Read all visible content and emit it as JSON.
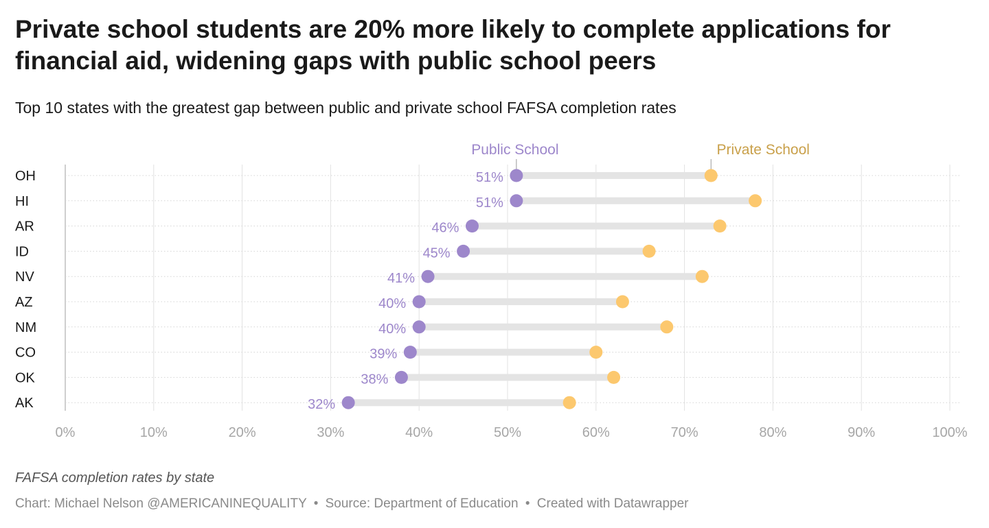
{
  "header": {
    "title": "Private school students are 20% more likely to complete applications for financial aid, widening gaps with public school peers",
    "subtitle": "Top 10 states with the greatest gap between public and private school FAFSA completion rates"
  },
  "footer": {
    "notes": "FAFSA completion rates by state",
    "credit": "Chart: Michael Nelson @AMERICANINEQUALITY",
    "source": "Source: Department of Education",
    "tool": "Created with Datawrapper",
    "separator": "•"
  },
  "colors": {
    "public": "#9d87cb",
    "private": "#fcc86e",
    "private_label": "#c9a04a",
    "connector": "#e4e4e4"
  },
  "chart_data": {
    "type": "dot-range",
    "categories": [
      "OH",
      "HI",
      "AR",
      "ID",
      "NV",
      "AZ",
      "NM",
      "CO",
      "OK",
      "AK"
    ],
    "series": [
      {
        "name": "Public School",
        "values": [
          51,
          51,
          46,
          45,
          41,
          40,
          40,
          39,
          38,
          32
        ]
      },
      {
        "name": "Private School",
        "values": [
          73,
          78,
          74,
          66,
          72,
          63,
          68,
          60,
          62,
          57
        ]
      }
    ],
    "value_labels": [
      "51%",
      "51%",
      "46%",
      "45%",
      "41%",
      "40%",
      "40%",
      "39%",
      "38%",
      "32%"
    ],
    "x_ticks": [
      "0%",
      "10%",
      "20%",
      "30%",
      "40%",
      "50%",
      "60%",
      "70%",
      "80%",
      "90%",
      "100%"
    ],
    "xlim": [
      0,
      100
    ],
    "grid": true,
    "legend_placement": "inline above first row"
  }
}
